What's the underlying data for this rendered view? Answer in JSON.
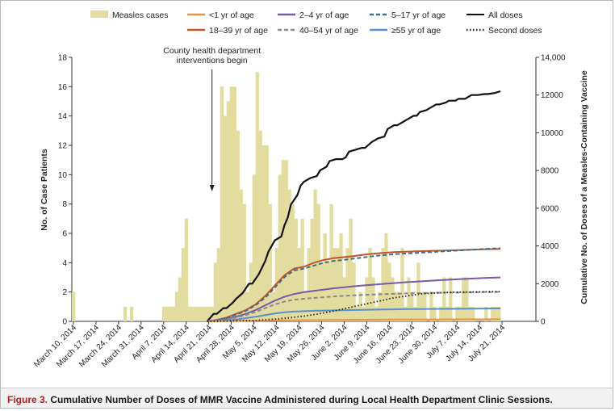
{
  "caption": {
    "label": "Figure 3.",
    "text": "Cumulative Number of Doses of MMR Vaccine Administered during Local Health Department Clinic Sessions."
  },
  "colors": {
    "measles_bar": "#e2dc9f",
    "lt1": "#e8943a",
    "y2_4": "#7b59a8",
    "y5_17": "#3e6e86",
    "y18_39": "#c5532a",
    "y40_54": "#8a8a8a",
    "ge55": "#5b8fc8",
    "all": "#111111",
    "second": "#222222"
  },
  "chart_data": {
    "type": "bar+line",
    "xlabel": "",
    "ylabel": "No. of Case Patients",
    "y2label": "Cumulative No. of Doses of a Measles-Containing Vaccine",
    "x_ticks": [
      "March 10, 2014",
      "March 17, 2014",
      "March 24, 2014",
      "March 31, 2014",
      "April 7, 2014",
      "April 14, 2014",
      "April 21, 2014",
      "April 28, 2014",
      "May 5, 2014",
      "May 12, 2014",
      "May 19, 2014",
      "May 26, 2014",
      "June 2, 2014",
      "June 9, 2014",
      "June 16, 2014",
      "June 23, 2014",
      "June 30, 2014",
      "July 7, 2014",
      "July 14, 2014",
      "July 21, 2014"
    ],
    "ylim": [
      0,
      18
    ],
    "y_ticks": [
      "0",
      "2",
      "4",
      "6",
      "8",
      "10",
      "12",
      "14",
      "16",
      "18"
    ],
    "y2lim": [
      0,
      14000
    ],
    "y2_ticks": [
      "0",
      "2000",
      "4000",
      "6000",
      "8000",
      "10000",
      "12000",
      "14,000"
    ],
    "annotation": {
      "lines": [
        "County health department",
        "interventions begin"
      ],
      "x": 43.5
    },
    "legend": [
      {
        "key": "measles",
        "label": "Measles cases",
        "style": "bar"
      },
      {
        "key": "lt1",
        "label": "<1 yr of age",
        "style": "solid"
      },
      {
        "key": "y2_4",
        "label": "2–4 yr of age",
        "style": "solid"
      },
      {
        "key": "y5_17",
        "label": "5–17 yr of age",
        "style": "dashed"
      },
      {
        "key": "all",
        "label": "All doses",
        "style": "solid"
      },
      {
        "key": "y18_39",
        "label": "18–39 yr of age",
        "style": "solid"
      },
      {
        "key": "y40_54",
        "label": "40–54 yr of age",
        "style": "dashed"
      },
      {
        "key": "ge55",
        "label": "≥55 yr of age",
        "style": "solid"
      },
      {
        "key": "second",
        "label": "Second doses",
        "style": "dotted"
      }
    ],
    "measles_cases": {
      "x_start": 0,
      "values": [
        2,
        0,
        0,
        0,
        0,
        0,
        0,
        0,
        0,
        0,
        0,
        0,
        0,
        0,
        0,
        0,
        1,
        0,
        1,
        0,
        0,
        0,
        0,
        0,
        0,
        0,
        0,
        0,
        1,
        1,
        1,
        1,
        2,
        3,
        5,
        7,
        1,
        1,
        1,
        1,
        1,
        1,
        1,
        1,
        4,
        5,
        16,
        14,
        15,
        16,
        16,
        13,
        9,
        8,
        2,
        4,
        10,
        17,
        13,
        12,
        12,
        8,
        2,
        5,
        10,
        11,
        11,
        9,
        8,
        7,
        5,
        7,
        2,
        5,
        7,
        9,
        8,
        4,
        6,
        4,
        8,
        5,
        5,
        6,
        3,
        5,
        7,
        4,
        1,
        2,
        1,
        3,
        5,
        3,
        1,
        2,
        5,
        6,
        4,
        3,
        2,
        2,
        5,
        1,
        3,
        2,
        1,
        4,
        2,
        2,
        0,
        2,
        1,
        0,
        1,
        3,
        1,
        3,
        0,
        1,
        1,
        3,
        3,
        1,
        1,
        0,
        0,
        0,
        1,
        0,
        1,
        1,
        1,
        0,
        0,
        0,
        0,
        0,
        0,
        0,
        0,
        0,
        0,
        0
      ]
    },
    "cumulative_doses": {
      "days": [
        0,
        42,
        44,
        46,
        48,
        50,
        52,
        54,
        56,
        58,
        60,
        62,
        64,
        66,
        68,
        70,
        72,
        74,
        76,
        78,
        80,
        82,
        84,
        86,
        88,
        90,
        92,
        94,
        96,
        98,
        100,
        102,
        104,
        106,
        108,
        110,
        112,
        114,
        116,
        118,
        120,
        122,
        124,
        126,
        128,
        130,
        132,
        134,
        136,
        138,
        140,
        142,
        144,
        146,
        148,
        150,
        152,
        154,
        156,
        158,
        160,
        162,
        164,
        166,
        168,
        170,
        172,
        174,
        176,
        178,
        180,
        182,
        184,
        186,
        188,
        190,
        192,
        194,
        196,
        198,
        200,
        202,
        204,
        206,
        208,
        210,
        212,
        214,
        216,
        218,
        220,
        222,
        224,
        226,
        228,
        230,
        232,
        234,
        236,
        238,
        240,
        242,
        244,
        246,
        248,
        250,
        252,
        254,
        256,
        258,
        260,
        262,
        264,
        266,
        268,
        270,
        272,
        274,
        276,
        278,
        280,
        282,
        284,
        286,
        288,
        290,
        292,
        294,
        296,
        298,
        300,
        302,
        304,
        306,
        308,
        310,
        312,
        314,
        316,
        318,
        320,
        322,
        324,
        326,
        328,
        330,
        332,
        334,
        336,
        338,
        340,
        342,
        344,
        346,
        348,
        350,
        352,
        354,
        356,
        358,
        360,
        362,
        364,
        366,
        368,
        370,
        372,
        374,
        376,
        378,
        380,
        382,
        384,
        386,
        388,
        390,
        392,
        394,
        396,
        398,
        400,
        402,
        404,
        406,
        408,
        410,
        412,
        414,
        416,
        418,
        420,
        422,
        424,
        426,
        428,
        430,
        432,
        434,
        436,
        438,
        440,
        442,
        444,
        446,
        448,
        450,
        452,
        454,
        456,
        458,
        460,
        462,
        464,
        466,
        468,
        470,
        472,
        474,
        476,
        478,
        480,
        482,
        484,
        486,
        488,
        490,
        492,
        494,
        496,
        498,
        500,
        502,
        504,
        506,
        508,
        510,
        512,
        514,
        516,
        518,
        520,
        522,
        524,
        526,
        528,
        530,
        532,
        534,
        536,
        538,
        540,
        542,
        544,
        546,
        548,
        550,
        552,
        554,
        556,
        558,
        560,
        562,
        564,
        566,
        568,
        570,
        572,
        574,
        576,
        578,
        580,
        582,
        584,
        586,
        588,
        590,
        592,
        594,
        596,
        598,
        600,
        602,
        604,
        606,
        608,
        610,
        612,
        614,
        616,
        618,
        620,
        622,
        624,
        626,
        628,
        630,
        632,
        634,
        636,
        638,
        640,
        642,
        644,
        646,
        648,
        650,
        652,
        654,
        656,
        658,
        660,
        662,
        664,
        666,
        668,
        670,
        672,
        674,
        676,
        678,
        680,
        682,
        684,
        686,
        688,
        690,
        692,
        694,
        696,
        698,
        700,
        702,
        704,
        706,
        708,
        710,
        712,
        714,
        716,
        718,
        720
      ],
      "series": [
        {
          "key": "all",
          "x": [
            42,
            44,
            45,
            47,
            48,
            50,
            51,
            53,
            55,
            56,
            58,
            60,
            61,
            63,
            65,
            66,
            67,
            68,
            70,
            71,
            72,
            73,
            74,
            76,
            77,
            79,
            80,
            82,
            84,
            85,
            86,
            88,
            90,
            91,
            93,
            95,
            97,
            98,
            100,
            101,
            103,
            104,
            106,
            107,
            108,
            110,
            111,
            113,
            114,
            116,
            117,
            119,
            120,
            122,
            123,
            124,
            126,
            128,
            129,
            131,
            133
          ],
          "y": [
            0,
            400,
            400,
            700,
            700,
            1000,
            1200,
            1500,
            2000,
            2000,
            2500,
            3200,
            3700,
            4300,
            4500,
            5100,
            5500,
            6200,
            6700,
            7200,
            7400,
            7500,
            7600,
            7700,
            8000,
            8200,
            8500,
            8600,
            8600,
            8700,
            9000,
            9100,
            9200,
            9200,
            9500,
            9700,
            9800,
            10200,
            10400,
            10400,
            10600,
            10700,
            10900,
            10900,
            11100,
            11200,
            11300,
            11500,
            11500,
            11600,
            11700,
            11700,
            11800,
            11800,
            11900,
            12000,
            12000,
            12050,
            12050,
            12100,
            12200
          ]
        },
        {
          "key": "y18_39",
          "x": [
            42,
            45,
            48,
            51,
            54,
            57,
            60,
            63,
            66,
            69,
            72,
            75,
            78,
            81,
            84,
            87,
            90,
            93,
            96,
            100,
            104,
            108,
            112,
            116,
            120,
            124,
            128,
            133
          ],
          "y": [
            0,
            80,
            200,
            400,
            600,
            900,
            1350,
            1900,
            2450,
            2800,
            2900,
            3100,
            3250,
            3350,
            3400,
            3450,
            3520,
            3580,
            3620,
            3670,
            3700,
            3720,
            3740,
            3760,
            3780,
            3800,
            3820,
            3840
          ]
        },
        {
          "key": "y5_17",
          "x": [
            42,
            45,
            48,
            51,
            54,
            57,
            60,
            63,
            66,
            69,
            72,
            75,
            78,
            81,
            84,
            87,
            90,
            93,
            96,
            100,
            104,
            108,
            112,
            116,
            120,
            124,
            128,
            133
          ],
          "y": [
            0,
            70,
            180,
            360,
            560,
            850,
            1250,
            1800,
            2350,
            2700,
            2800,
            2950,
            3100,
            3200,
            3250,
            3320,
            3380,
            3450,
            3500,
            3560,
            3600,
            3640,
            3680,
            3720,
            3760,
            3800,
            3840,
            3880
          ]
        },
        {
          "key": "y2_4",
          "x": [
            42,
            45,
            48,
            51,
            54,
            57,
            60,
            63,
            66,
            69,
            72,
            75,
            78,
            81,
            84,
            87,
            90,
            93,
            96,
            100,
            104,
            108,
            112,
            116,
            120,
            124,
            128,
            133
          ],
          "y": [
            0,
            50,
            120,
            250,
            400,
            600,
            850,
            1100,
            1300,
            1450,
            1550,
            1620,
            1680,
            1750,
            1800,
            1850,
            1900,
            1940,
            1980,
            2030,
            2080,
            2120,
            2160,
            2200,
            2240,
            2270,
            2300,
            2330
          ]
        },
        {
          "key": "y40_54",
          "x": [
            42,
            45,
            48,
            51,
            54,
            57,
            60,
            63,
            66,
            69,
            72,
            75,
            78,
            81,
            84,
            87,
            90,
            93,
            96,
            100,
            104,
            108,
            112,
            116,
            120,
            124,
            128,
            133
          ],
          "y": [
            0,
            40,
            100,
            200,
            330,
            500,
            700,
            900,
            1050,
            1150,
            1200,
            1240,
            1280,
            1320,
            1350,
            1380,
            1400,
            1420,
            1440,
            1460,
            1480,
            1500,
            1510,
            1520,
            1530,
            1540,
            1550,
            1560
          ]
        },
        {
          "key": "ge55",
          "x": [
            42,
            45,
            48,
            51,
            54,
            57,
            60,
            63,
            66,
            69,
            72,
            75,
            78,
            81,
            84,
            87,
            90,
            93,
            96,
            100,
            104,
            108,
            112,
            116,
            120,
            124,
            128,
            133
          ],
          "y": [
            0,
            20,
            50,
            100,
            170,
            250,
            330,
            420,
            480,
            520,
            540,
            560,
            570,
            580,
            590,
            600,
            610,
            620,
            630,
            640,
            650,
            655,
            660,
            665,
            670,
            675,
            680,
            690
          ]
        },
        {
          "key": "lt1",
          "x": [
            42,
            48,
            54,
            60,
            66,
            72,
            80,
            90,
            100,
            110,
            120,
            133
          ],
          "y": [
            0,
            10,
            25,
            40,
            55,
            65,
            75,
            85,
            95,
            100,
            105,
            110
          ]
        },
        {
          "key": "second",
          "x": [
            42,
            50,
            56,
            60,
            64,
            68,
            72,
            76,
            80,
            84,
            88,
            92,
            96,
            100,
            104,
            108,
            112,
            116,
            120,
            124,
            128,
            133
          ],
          "y": [
            0,
            20,
            40,
            80,
            130,
            200,
            280,
            380,
            500,
            650,
            800,
            950,
            1100,
            1250,
            1350,
            1450,
            1500,
            1530,
            1550,
            1560,
            1570,
            1580
          ]
        }
      ]
    }
  }
}
